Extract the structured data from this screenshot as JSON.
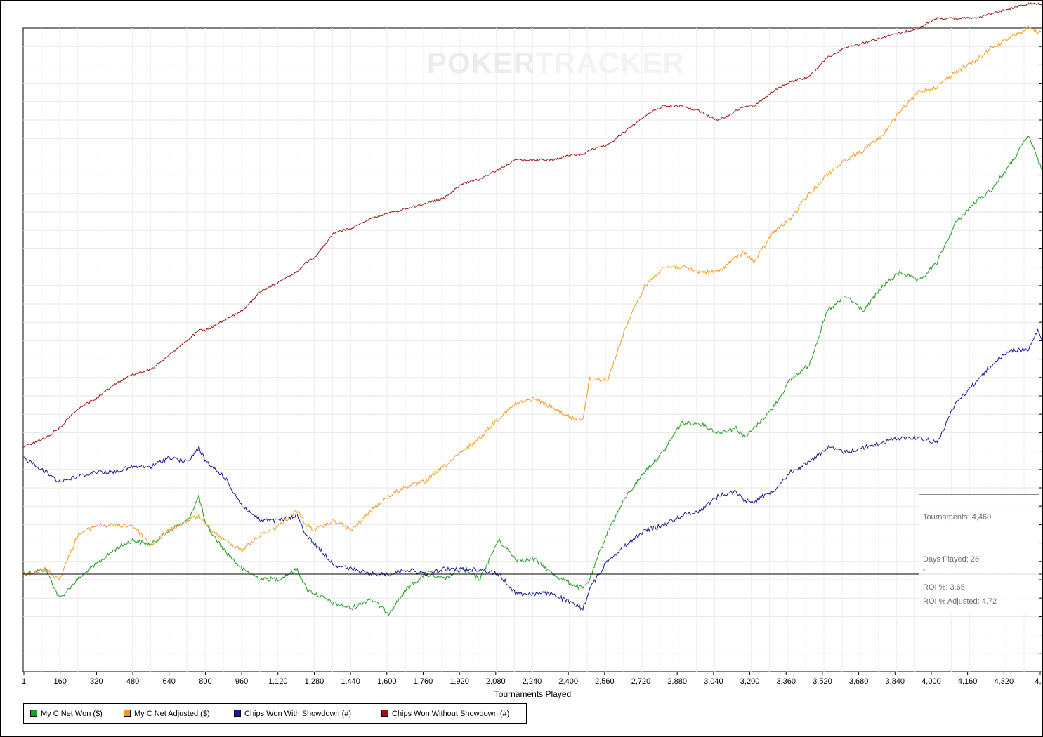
{
  "watermark": {
    "part1": "POKER",
    "part2": "TRACKER"
  },
  "info_box": {
    "tournaments": "Tournaments: 4,460",
    "days_played": "Days Played: 26",
    "dash": "-",
    "roi": "ROI %: 3.65",
    "roi_adjusted": "ROI % Adjusted: 4.72"
  },
  "legend": {
    "items": [
      {
        "label": "My C Net Won ($)",
        "color": "#1f9c1f"
      },
      {
        "label": "My C Net Adjusted ($)",
        "color": "#f39a21"
      },
      {
        "label": "Chips Won With Showdown (#)",
        "color": "#17189a"
      },
      {
        "label": "Chips Won Without Showdown (#)",
        "color": "#a0120f"
      }
    ]
  },
  "chart_data": {
    "type": "line",
    "xlabel": "Tournaments Played",
    "ylabel": "",
    "x_tick_labels": [
      "1",
      "160",
      "320",
      "480",
      "640",
      "800",
      "960",
      "1,120",
      "1,280",
      "1,440",
      "1,600",
      "1,760",
      "1,920",
      "2,080",
      "2,240",
      "2,400",
      "2,560",
      "2,720",
      "2,880",
      "3,040",
      "3,200",
      "3,360",
      "3,520",
      "3,680",
      "3,840",
      "4,000",
      "4,160",
      "4,320",
      "4,4"
    ],
    "xlim": [
      1,
      4460
    ],
    "ylim": [
      -0.2,
      1.12
    ],
    "y_axis_note": "no y tick labels shown; values are relative (0 = baseline)",
    "grid": true,
    "legend_position": "bottom-left",
    "x": [
      1,
      100,
      160,
      240,
      320,
      400,
      480,
      560,
      640,
      720,
      770,
      800,
      880,
      960,
      1040,
      1120,
      1200,
      1240,
      1280,
      1360,
      1440,
      1520,
      1600,
      1680,
      1760,
      1840,
      1920,
      2000,
      2080,
      2160,
      2240,
      2320,
      2400,
      2450,
      2480,
      2560,
      2640,
      2720,
      2800,
      2880,
      2960,
      3040,
      3120,
      3160,
      3200,
      3280,
      3360,
      3440,
      3520,
      3600,
      3680,
      3760,
      3840,
      3920,
      4000,
      4080,
      4160,
      4240,
      4320,
      4400,
      4440,
      4460
    ],
    "series": [
      {
        "name": "My C Net Won ($)",
        "color": "#1f9c1f",
        "values": [
          0.0,
          0.01,
          -0.05,
          -0.01,
          0.02,
          0.05,
          0.07,
          0.06,
          0.09,
          0.11,
          0.16,
          0.1,
          0.05,
          0.01,
          -0.01,
          -0.01,
          0.01,
          -0.03,
          -0.04,
          -0.06,
          -0.07,
          -0.05,
          -0.08,
          -0.03,
          0.0,
          -0.01,
          0.01,
          -0.01,
          0.07,
          0.03,
          0.03,
          0.0,
          -0.02,
          -0.03,
          -0.01,
          0.09,
          0.16,
          0.21,
          0.25,
          0.31,
          0.31,
          0.29,
          0.3,
          0.28,
          0.3,
          0.34,
          0.4,
          0.43,
          0.54,
          0.57,
          0.54,
          0.59,
          0.62,
          0.6,
          0.64,
          0.72,
          0.76,
          0.79,
          0.84,
          0.9,
          0.85,
          0.83
        ]
      },
      {
        "name": "My C Net Adjusted ($)",
        "color": "#f39a21",
        "values": [
          0.0,
          0.01,
          -0.01,
          0.08,
          0.1,
          0.1,
          0.1,
          0.06,
          0.09,
          0.11,
          0.12,
          0.1,
          0.07,
          0.05,
          0.08,
          0.1,
          0.13,
          0.1,
          0.09,
          0.11,
          0.09,
          0.13,
          0.16,
          0.18,
          0.19,
          0.22,
          0.25,
          0.28,
          0.32,
          0.35,
          0.36,
          0.34,
          0.32,
          0.32,
          0.4,
          0.4,
          0.51,
          0.59,
          0.63,
          0.63,
          0.62,
          0.62,
          0.65,
          0.66,
          0.64,
          0.7,
          0.73,
          0.78,
          0.82,
          0.85,
          0.87,
          0.9,
          0.95,
          0.99,
          1.0,
          1.03,
          1.05,
          1.08,
          1.1,
          1.12,
          1.11,
          1.11
        ]
      },
      {
        "name": "Chips Won With Showdown (#)",
        "color": "#17189a",
        "values": [
          0.24,
          0.21,
          0.19,
          0.2,
          0.21,
          0.21,
          0.22,
          0.22,
          0.24,
          0.23,
          0.26,
          0.23,
          0.2,
          0.14,
          0.11,
          0.11,
          0.12,
          0.08,
          0.06,
          0.02,
          0.01,
          0.0,
          0.0,
          0.01,
          0.0,
          0.01,
          0.01,
          0.01,
          0.0,
          -0.04,
          -0.04,
          -0.04,
          -0.06,
          -0.07,
          -0.03,
          0.03,
          0.06,
          0.09,
          0.1,
          0.12,
          0.13,
          0.16,
          0.17,
          0.15,
          0.15,
          0.17,
          0.21,
          0.23,
          0.26,
          0.25,
          0.26,
          0.27,
          0.28,
          0.28,
          0.27,
          0.35,
          0.39,
          0.43,
          0.46,
          0.46,
          0.5,
          0.48
        ]
      },
      {
        "name": "Chips Won Without Showdown (#)",
        "color": "#a0120f",
        "values": [
          0.26,
          0.28,
          0.3,
          0.34,
          0.36,
          0.39,
          0.41,
          0.42,
          0.45,
          0.48,
          0.5,
          0.5,
          0.52,
          0.54,
          0.58,
          0.6,
          0.62,
          0.64,
          0.65,
          0.7,
          0.71,
          0.73,
          0.74,
          0.75,
          0.76,
          0.77,
          0.8,
          0.81,
          0.83,
          0.85,
          0.85,
          0.85,
          0.86,
          0.86,
          0.87,
          0.88,
          0.91,
          0.94,
          0.96,
          0.96,
          0.95,
          0.93,
          0.95,
          0.96,
          0.96,
          0.99,
          1.01,
          1.02,
          1.06,
          1.08,
          1.09,
          1.1,
          1.11,
          1.12,
          1.14,
          1.14,
          1.14,
          1.15,
          1.16,
          1.17,
          1.17,
          1.17
        ]
      }
    ]
  }
}
